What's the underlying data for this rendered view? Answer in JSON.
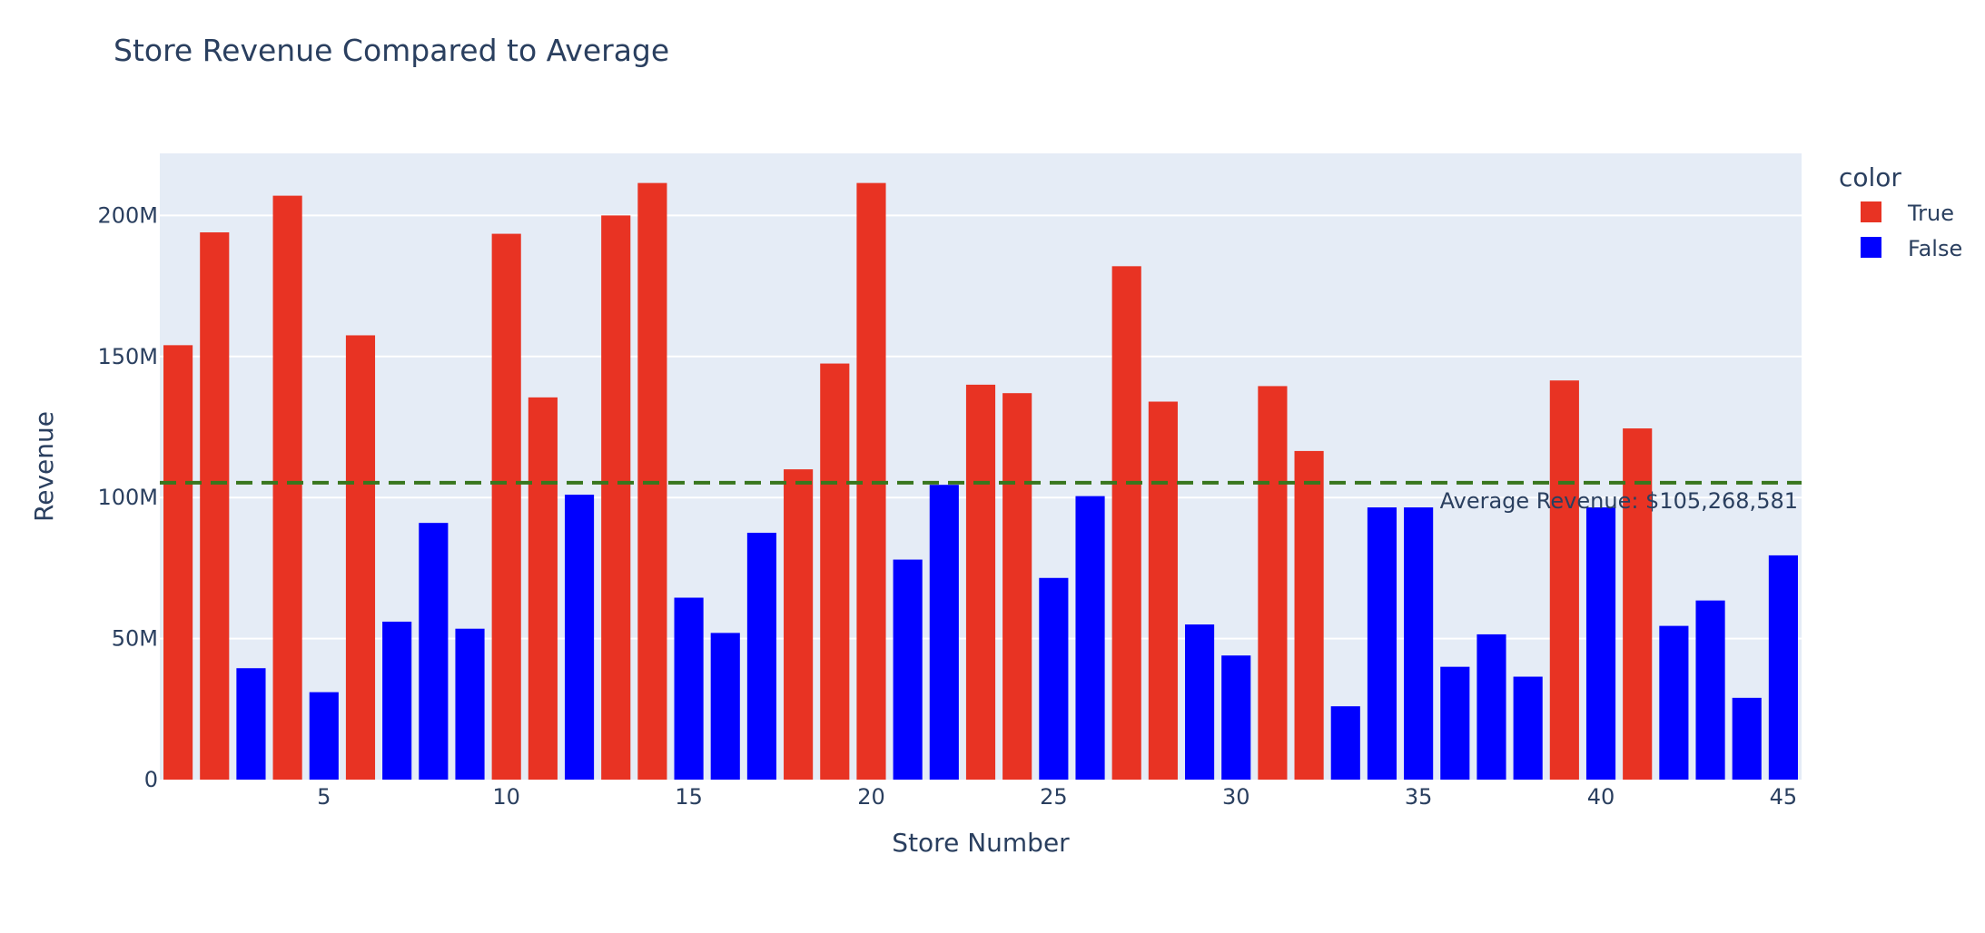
{
  "chart_data": {
    "type": "bar",
    "title": "Store Revenue Compared to Average",
    "xlabel": "Store Number",
    "ylabel": "Revenue",
    "x_ticks": [
      "5",
      "10",
      "15",
      "20",
      "25",
      "30",
      "35",
      "40",
      "45"
    ],
    "y_ticks": [
      {
        "value": 0,
        "label": "0"
      },
      {
        "value": 50000000,
        "label": "50M"
      },
      {
        "value": 100000000,
        "label": "100M"
      },
      {
        "value": 150000000,
        "label": "150M"
      },
      {
        "value": 200000000,
        "label": "200M"
      }
    ],
    "xlim": [
      0.5,
      45.5
    ],
    "ylim": [
      0,
      222000000
    ],
    "grid": true,
    "legend": {
      "title": "color",
      "placement": "top-right",
      "entries": [
        {
          "name": "True",
          "color": "#e83323"
        },
        {
          "name": "False",
          "color": "#0000ff"
        }
      ]
    },
    "colors": {
      "True": "#e83323",
      "False": "#0000ff",
      "average_line": "#38761d",
      "plot_bg": "#e5ecf6",
      "grid": "#ffffff"
    },
    "average": {
      "value": 105268581,
      "label": "Average Revenue: $105,268,581"
    },
    "x": [
      1,
      2,
      3,
      4,
      5,
      6,
      7,
      8,
      9,
      10,
      11,
      12,
      13,
      14,
      15,
      16,
      17,
      18,
      19,
      20,
      21,
      22,
      23,
      24,
      25,
      26,
      27,
      28,
      29,
      30,
      31,
      32,
      33,
      34,
      35,
      36,
      37,
      38,
      39,
      40,
      41,
      42,
      43,
      44,
      45
    ],
    "values": [
      154000000,
      194000000,
      39500000,
      207000000,
      31000000,
      157500000,
      56000000,
      91000000,
      53500000,
      193500000,
      135500000,
      101000000,
      200000000,
      211500000,
      64500000,
      52000000,
      87500000,
      110000000,
      147500000,
      211500000,
      78000000,
      104500000,
      140000000,
      137000000,
      71500000,
      100500000,
      182000000,
      134000000,
      55000000,
      44000000,
      139500000,
      116500000,
      26000000,
      96500000,
      96500000,
      40000000,
      51500000,
      36500000,
      141500000,
      96500000,
      124500000,
      54500000,
      63500000,
      29000000,
      79500000
    ],
    "above_average": [
      true,
      true,
      false,
      true,
      false,
      true,
      false,
      false,
      false,
      true,
      true,
      false,
      true,
      true,
      false,
      false,
      false,
      true,
      true,
      true,
      false,
      false,
      true,
      true,
      false,
      false,
      true,
      true,
      false,
      false,
      true,
      true,
      false,
      false,
      false,
      false,
      false,
      false,
      true,
      false,
      true,
      false,
      false,
      false,
      false
    ]
  }
}
